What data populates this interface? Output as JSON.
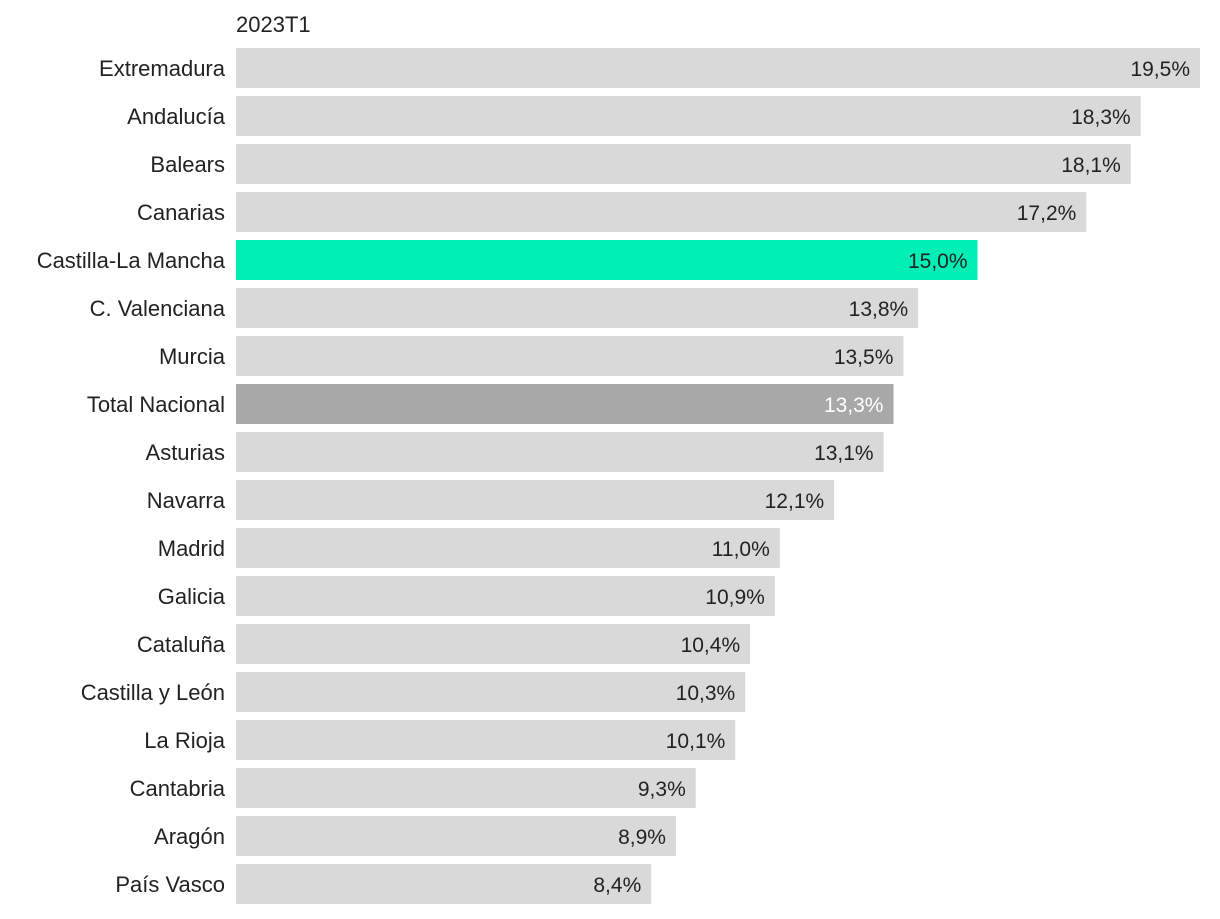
{
  "chart_data": {
    "type": "bar",
    "orientation": "horizontal",
    "period": "2023T1",
    "title": "",
    "xlabel": "",
    "ylabel": "",
    "xlim": [
      0,
      19.5
    ],
    "grid": false,
    "legend": "none",
    "value_suffix": "%",
    "categories": [
      "Extremadura",
      "Andalucía",
      "Balears",
      "Canarias",
      "Castilla-La Mancha",
      "C. Valenciana",
      "Murcia",
      "Total Nacional",
      "Asturias",
      "Navarra",
      "Madrid",
      "Galicia",
      "Cataluña",
      "Castilla y León",
      "La Rioja",
      "Cantabria",
      "Aragón",
      "País Vasco"
    ],
    "values": [
      19.5,
      18.3,
      18.1,
      17.2,
      15.0,
      13.8,
      13.5,
      13.3,
      13.1,
      12.1,
      11.0,
      10.9,
      10.4,
      10.3,
      10.1,
      9.3,
      8.9,
      8.4
    ],
    "value_labels": [
      "19,5%",
      "18,3%",
      "18,1%",
      "17,2%",
      "15,0%",
      "13,8%",
      "13,5%",
      "13,3%",
      "13,1%",
      "12,1%",
      "11,0%",
      "10,9%",
      "10,4%",
      "10,3%",
      "10,1%",
      "9,3%",
      "8,9%",
      "8,4%"
    ],
    "highlight": {
      "Castilla-La Mancha": "#00efb6",
      "Total Nacional": "#a8a8a8"
    },
    "colors": {
      "default_bar": "#d9d9d9",
      "highlight_bar": "#00efb6",
      "total_bar": "#a8a8a8",
      "label_text": "#222222",
      "total_label_text": "#ffffff"
    }
  }
}
